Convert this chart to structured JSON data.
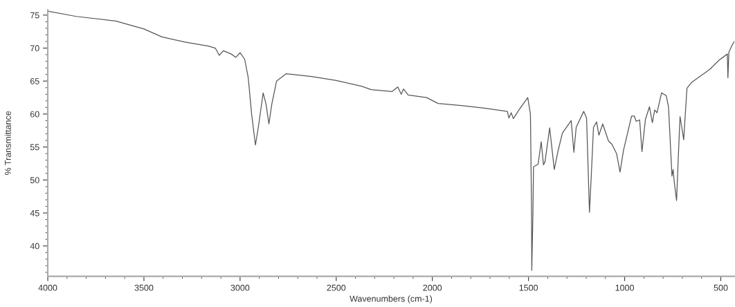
{
  "chart_data": {
    "type": "line",
    "xlabel": "Wavenumbers (cm-1)",
    "ylabel": "% Transmittance",
    "xlim": [
      4000,
      430
    ],
    "ylim": [
      35.4,
      75.8
    ],
    "xticks": [
      4000,
      {
        "value": 3900,
        "label": null
      },
      {
        "value": 3800,
        "label": null
      },
      {
        "value": 3700,
        "label": null
      },
      {
        "value": 3600,
        "label": null
      },
      3500,
      {
        "value": 3400,
        "label": null
      },
      {
        "value": 3300,
        "label": null
      },
      {
        "value": 3200,
        "label": null
      },
      {
        "value": 3100,
        "label": null
      },
      3000,
      {
        "value": 2900,
        "label": null
      },
      {
        "value": 2800,
        "label": null
      },
      {
        "value": 2700,
        "label": null
      },
      {
        "value": 2600,
        "label": null
      },
      2500,
      {
        "value": 2400,
        "label": null
      },
      {
        "value": 2300,
        "label": null
      },
      {
        "value": 2200,
        "label": null
      },
      {
        "value": 2100,
        "label": null
      },
      2000,
      {
        "value": 1900,
        "label": null
      },
      {
        "value": 1800,
        "label": null
      },
      {
        "value": 1700,
        "label": null
      },
      {
        "value": 1600,
        "label": null
      },
      1500,
      {
        "value": 1400,
        "label": null
      },
      {
        "value": 1300,
        "label": null
      },
      {
        "value": 1200,
        "label": null
      },
      {
        "value": 1100,
        "label": null
      },
      1000,
      {
        "value": 900,
        "label": null
      },
      {
        "value": 800,
        "label": null
      },
      {
        "value": 700,
        "label": null
      },
      {
        "value": 600,
        "label": null
      },
      500
    ],
    "yticks": [
      {
        "value": 36,
        "label": null
      },
      {
        "value": 37,
        "label": null
      },
      {
        "value": 38,
        "label": null
      },
      {
        "value": 39,
        "label": null
      },
      40,
      {
        "value": 41,
        "label": null
      },
      {
        "value": 42,
        "label": null
      },
      {
        "value": 43,
        "label": null
      },
      {
        "value": 44,
        "label": null
      },
      45,
      {
        "value": 46,
        "label": null
      },
      {
        "value": 47,
        "label": null
      },
      {
        "value": 48,
        "label": null
      },
      {
        "value": 49,
        "label": null
      },
      50,
      {
        "value": 51,
        "label": null
      },
      {
        "value": 52,
        "label": null
      },
      {
        "value": 53,
        "label": null
      },
      {
        "value": 54,
        "label": null
      },
      55,
      {
        "value": 56,
        "label": null
      },
      {
        "value": 57,
        "label": null
      },
      {
        "value": 58,
        "label": null
      },
      {
        "value": 59,
        "label": null
      },
      60,
      {
        "value": 61,
        "label": null
      },
      {
        "value": 62,
        "label": null
      },
      {
        "value": 63,
        "label": null
      },
      {
        "value": 64,
        "label": null
      },
      65,
      {
        "value": 66,
        "label": null
      },
      {
        "value": 67,
        "label": null
      },
      {
        "value": 68,
        "label": null
      },
      {
        "value": 69,
        "label": null
      },
      70,
      {
        "value": 71,
        "label": null
      },
      {
        "value": 72,
        "label": null
      },
      {
        "value": 73,
        "label": null
      },
      {
        "value": 74,
        "label": null
      },
      75
    ],
    "grid": false,
    "legend": false,
    "series": [
      {
        "color": "#555555",
        "x": [
          4000,
          3852,
          3647,
          3500,
          3406,
          3286,
          3165,
          3129,
          3108,
          3087,
          3046,
          3022,
          3000,
          2976,
          2958,
          2952,
          2940,
          2920,
          2905,
          2880,
          2865,
          2850,
          2835,
          2810,
          2761,
          2629,
          2500,
          2366,
          2318,
          2210,
          2180,
          2162,
          2150,
          2126,
          2030,
          1970,
          1850,
          1730,
          1610,
          1602,
          1590,
          1579,
          1550,
          1504,
          1490,
          1484,
          1483,
          1477,
          1474,
          1450,
          1434,
          1422,
          1414,
          1390,
          1366,
          1348,
          1324,
          1278,
          1264,
          1252,
          1213,
          1198,
          1183,
          1174,
          1162,
          1146,
          1134,
          1114,
          1084,
          1066,
          1042,
          1024,
          1006,
          964,
          950,
          940,
          922,
          910,
          892,
          871,
          856,
          844,
          832,
          808,
          784,
          772,
          754,
          748,
          742,
          730,
          721,
          712,
          703,
          693,
          676,
          652,
          604,
          556,
          508,
          466,
          463,
          458,
          440,
          430
        ],
        "values": [
          75.6,
          74.8,
          74.1,
          72.9,
          71.7,
          70.9,
          70.3,
          70.0,
          68.9,
          69.6,
          69.1,
          68.6,
          69.3,
          68.3,
          65.6,
          63.8,
          60.0,
          55.3,
          58.0,
          63.2,
          61.5,
          58.5,
          61.5,
          65.0,
          66.1,
          65.7,
          65.1,
          64.2,
          63.7,
          63.4,
          64.1,
          63.0,
          63.8,
          62.9,
          62.5,
          61.6,
          61.3,
          60.9,
          60.4,
          59.4,
          60.2,
          59.3,
          60.6,
          62.5,
          60.0,
          45.0,
          36.3,
          45.0,
          52.0,
          52.4,
          55.8,
          52.3,
          52.8,
          57.9,
          51.6,
          54.2,
          57.1,
          59.0,
          54.2,
          58.0,
          60.4,
          59.4,
          45.1,
          50.4,
          58.0,
          58.8,
          56.8,
          58.5,
          55.9,
          55.4,
          54.0,
          51.2,
          54.5,
          59.7,
          59.7,
          58.9,
          59.1,
          54.3,
          59.2,
          61.1,
          58.7,
          60.6,
          60.2,
          63.2,
          62.8,
          61.1,
          50.6,
          51.6,
          49.7,
          46.9,
          53.5,
          59.6,
          58.0,
          56.1,
          63.9,
          64.8,
          65.8,
          66.8,
          68.2,
          69.1,
          65.5,
          69.4,
          70.5,
          71.0
        ]
      }
    ]
  }
}
